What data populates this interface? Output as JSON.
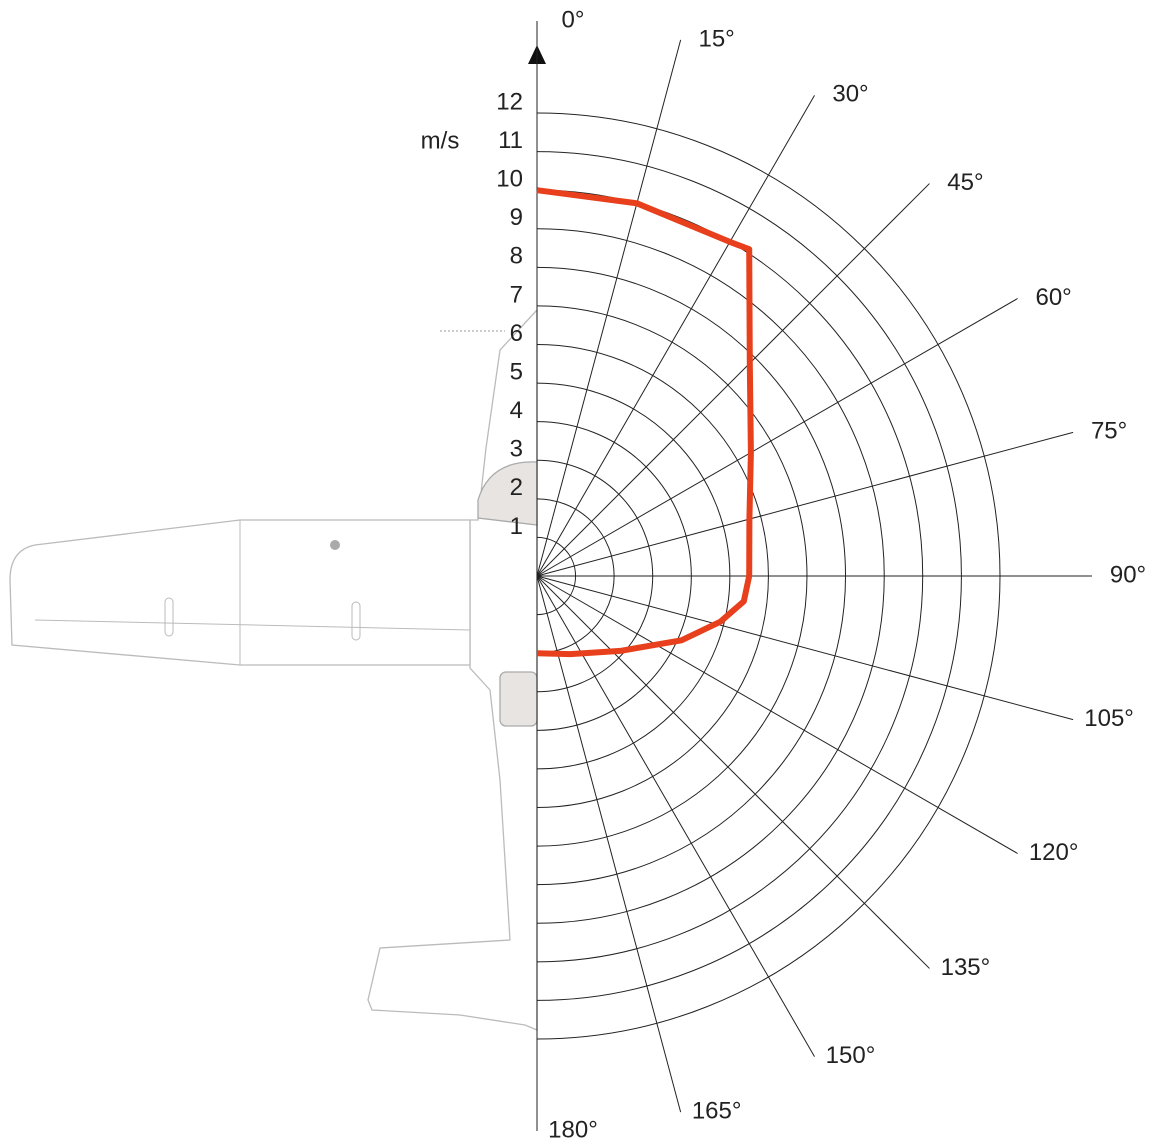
{
  "chart_data": {
    "type": "polar",
    "unit_label": "m/s",
    "rlim": [
      0,
      12
    ],
    "rticks": [
      1,
      2,
      3,
      4,
      5,
      6,
      7,
      8,
      9,
      10,
      11,
      12
    ],
    "thetalim": [
      0,
      180
    ],
    "thetaticks": [
      {
        "value": 0,
        "label": "0°"
      },
      {
        "value": 15,
        "label": "15°"
      },
      {
        "value": 30,
        "label": "30°"
      },
      {
        "value": 45,
        "label": "45°"
      },
      {
        "value": 60,
        "label": "60°"
      },
      {
        "value": 75,
        "label": "75°"
      },
      {
        "value": 90,
        "label": "90°"
      },
      {
        "value": 105,
        "label": "105°"
      },
      {
        "value": 120,
        "label": "120°"
      },
      {
        "value": 135,
        "label": "135°"
      },
      {
        "value": 150,
        "label": "150°"
      },
      {
        "value": 165,
        "label": "165°"
      },
      {
        "value": 180,
        "label": "180°"
      }
    ],
    "series": [
      {
        "color": "#e8401c",
        "theta": [
          0,
          15,
          30,
          33,
          45,
          60,
          75,
          90,
          97,
          104,
          114,
          132,
          157,
          180
        ],
        "values": [
          10,
          10,
          10,
          10.1,
          7.8,
          6.4,
          5.7,
          5.5,
          5.4,
          4.9,
          4.1,
          2.9,
          2.2,
          2
        ]
      }
    ]
  }
}
